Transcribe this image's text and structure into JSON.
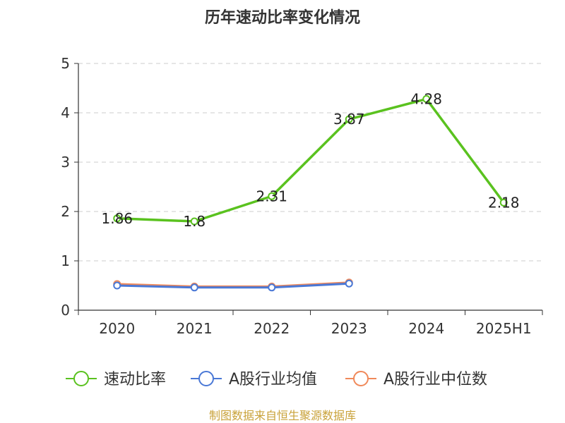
{
  "chart_data": {
    "type": "line",
    "title": "历年速动比率变化情况",
    "xlabel": "",
    "ylabel": "",
    "categories": [
      "2020",
      "2021",
      "2022",
      "2023",
      "2024",
      "2025H1"
    ],
    "ylim": [
      0,
      5
    ],
    "yticks": [
      0,
      1,
      2,
      3,
      4,
      5
    ],
    "grid": "horizontal-dashed",
    "legend_position": "bottom",
    "series": [
      {
        "name": "速动比率",
        "color": "#5ac21f",
        "values": [
          1.86,
          1.8,
          2.31,
          3.87,
          4.28,
          2.18
        ],
        "labels": [
          "1.86",
          "1.8",
          "2.31",
          "3.87",
          "4.28",
          "2.18"
        ]
      },
      {
        "name": "A股行业均值",
        "color": "#4a78d6",
        "values": [
          0.5,
          0.46,
          0.46,
          0.54,
          null,
          null
        ]
      },
      {
        "name": "A股行业中位数",
        "color": "#f0895a",
        "values": [
          0.53,
          0.48,
          0.48,
          0.56,
          null,
          null
        ]
      }
    ]
  },
  "source": "制图数据来自恒生聚源数据库"
}
